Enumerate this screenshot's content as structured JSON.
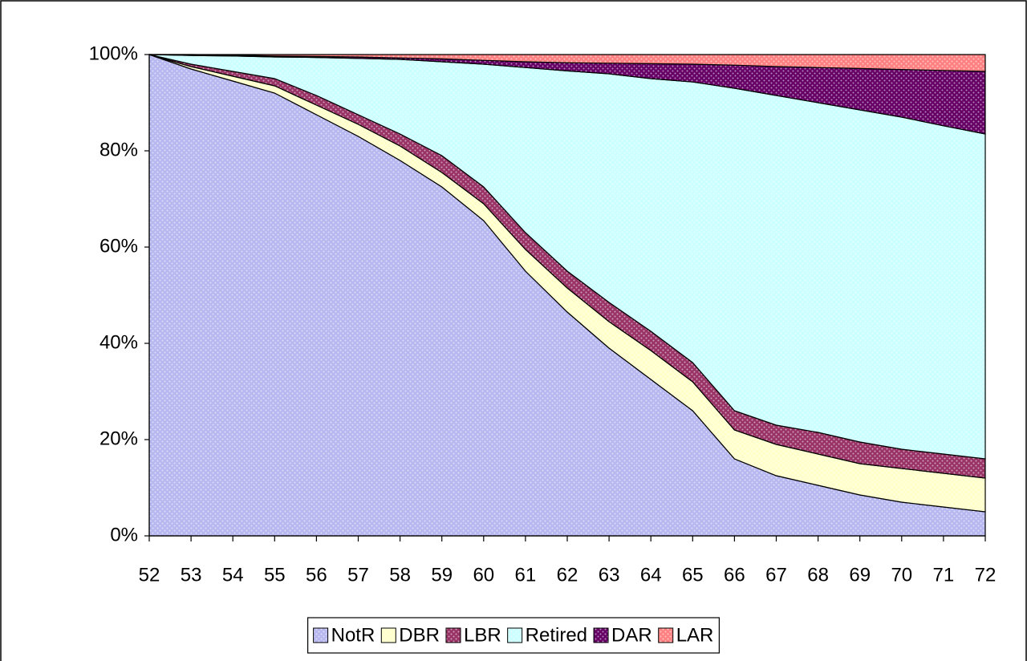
{
  "chart_data": {
    "type": "stacked_area",
    "x": [
      52,
      53,
      54,
      55,
      56,
      57,
      58,
      59,
      60,
      61,
      62,
      63,
      64,
      65,
      66,
      67,
      68,
      69,
      70,
      71,
      72
    ],
    "xlim": [
      52,
      72
    ],
    "xticks": [
      52,
      53,
      54,
      55,
      56,
      57,
      58,
      59,
      60,
      61,
      62,
      63,
      64,
      65,
      66,
      67,
      68,
      69,
      70,
      71,
      72
    ],
    "ylim": [
      0,
      100
    ],
    "yticks": [
      {
        "value": 0,
        "label": "0%"
      },
      {
        "value": 20,
        "label": "20%"
      },
      {
        "value": 40,
        "label": "40%"
      },
      {
        "value": 60,
        "label": "60%"
      },
      {
        "value": 80,
        "label": "80%"
      },
      {
        "value": 100,
        "label": "100%"
      }
    ],
    "legend": "bottom",
    "series": [
      {
        "name": "NotR",
        "color": "#b8b8f0",
        "values": [
          100,
          97,
          94.5,
          92,
          87.5,
          83,
          78,
          72.5,
          65.5,
          55,
          46.5,
          39,
          32.5,
          26,
          16,
          12.5,
          10.5,
          8.5,
          7,
          6,
          5
        ]
      },
      {
        "name": "DBR",
        "color": "#ffffcc",
        "values": [
          0,
          0.5,
          1,
          1.5,
          2,
          2.5,
          3,
          3,
          3.5,
          4.5,
          5,
          5.5,
          6,
          6,
          6,
          6.5,
          6.5,
          6.5,
          7,
          7,
          7
        ]
      },
      {
        "name": "LBR",
        "color": "#993366",
        "values": [
          0,
          0.5,
          1,
          1.5,
          2,
          2,
          2.5,
          3.5,
          3.5,
          3.5,
          3.5,
          4,
          4,
          4,
          4,
          4,
          4.5,
          4.5,
          4,
          4,
          4
        ]
      },
      {
        "name": "Retired",
        "color": "#ccffff",
        "values": [
          0,
          1.8,
          3.2,
          4.5,
          7.9,
          11.7,
          15.5,
          19.5,
          25.5,
          34.3,
          41.6,
          47.5,
          52.5,
          58.3,
          67,
          68.5,
          68.5,
          69,
          69,
          68.2,
          67.5
        ]
      },
      {
        "name": "DAR",
        "color": "#660066",
        "values": [
          0,
          0.2,
          0.2,
          0.2,
          0.2,
          0.3,
          0.3,
          0.6,
          0.8,
          1.2,
          1.7,
          2.2,
          3.1,
          3.7,
          4.8,
          6,
          7.3,
          8.6,
          9.9,
          11.5,
          13
        ]
      },
      {
        "name": "LAR",
        "color": "#ff8080",
        "values": [
          0,
          0,
          0.1,
          0.3,
          0.4,
          0.5,
          0.7,
          0.9,
          1.2,
          1.5,
          1.7,
          1.8,
          1.9,
          2,
          2.2,
          2.5,
          2.7,
          2.9,
          3.1,
          3.3,
          3.5
        ]
      }
    ]
  }
}
